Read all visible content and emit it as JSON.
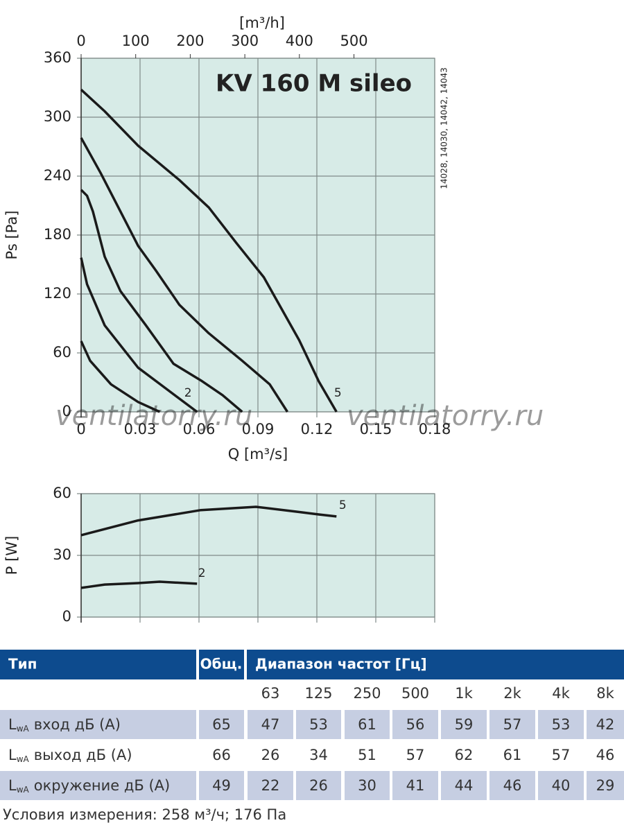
{
  "chart_data": [
    {
      "type": "line",
      "title": "KV 160 M sileo",
      "side_note": "14028, 14030, 14042, 14043",
      "xlabel": "Q [m³/s]",
      "ylabel": "Ps [Pa]",
      "x2label": "[m³/h]",
      "xlim": [
        0,
        0.18
      ],
      "xticks": [
        0,
        0.03,
        0.06,
        0.09,
        0.12,
        0.15,
        0.18
      ],
      "ylim": [
        0,
        360
      ],
      "yticks": [
        0,
        60,
        120,
        180,
        240,
        300,
        360
      ],
      "x2lim": [
        0,
        648
      ],
      "x2ticks": [
        0,
        100,
        200,
        300,
        400,
        500
      ],
      "grid": true,
      "background": "#d7ebe7",
      "grid_color": "#7f8a88",
      "watermark": [
        "ventilatorry.ru",
        "ventilatorry.ru"
      ],
      "series": [
        {
          "color": "#1a1a1a",
          "x": [
            0,
            0.0046,
            0.0152,
            0.029,
            0.04
          ],
          "values": [
            72,
            52,
            28,
            10,
            0
          ]
        },
        {
          "name": "2",
          "color": "#1a1a1a",
          "x": [
            0,
            0.003,
            0.012,
            0.029,
            0.043,
            0.059
          ],
          "values": [
            157,
            130,
            88,
            45,
            24,
            0
          ]
        },
        {
          "color": "#1a1a1a",
          "x": [
            0,
            0.003,
            0.006,
            0.012,
            0.02,
            0.033,
            0.047,
            0.061,
            0.072,
            0.082
          ],
          "values": [
            226,
            220,
            204,
            158,
            123,
            88,
            49,
            32,
            17,
            0
          ]
        },
        {
          "color": "#1a1a1a",
          "x": [
            0,
            0.01,
            0.019,
            0.029,
            0.038,
            0.05,
            0.065,
            0.082,
            0.096,
            0.105
          ],
          "values": [
            279,
            243,
            208,
            169,
            144,
            109,
            80,
            52,
            28,
            0
          ]
        },
        {
          "name": "5",
          "color": "#1a1a1a",
          "x": [
            0,
            0.012,
            0.029,
            0.05,
            0.065,
            0.079,
            0.093,
            0.111,
            0.121,
            0.13
          ],
          "values": [
            328,
            306,
            271,
            236,
            208,
            172,
            137,
            73,
            31,
            0
          ]
        }
      ]
    },
    {
      "type": "line",
      "ylabel": "P [W]",
      "xlim": [
        0,
        0.18
      ],
      "xticks": [
        0,
        0.03,
        0.06,
        0.09,
        0.12,
        0.15,
        0.18
      ],
      "ylim": [
        0,
        60
      ],
      "yticks": [
        0,
        30,
        60
      ],
      "grid": true,
      "background": "#d7ebe7",
      "grid_color": "#7f8a88",
      "series": [
        {
          "name": "5",
          "color": "#1a1a1a",
          "x": [
            0,
            0.029,
            0.061,
            0.089,
            0.11,
            0.121,
            0.13
          ],
          "values": [
            39.8,
            47,
            52,
            53.6,
            51.2,
            49.9,
            48.9
          ]
        },
        {
          "name": "2",
          "color": "#1a1a1a",
          "x": [
            0,
            0.012,
            0.029,
            0.04,
            0.059
          ],
          "values": [
            14.2,
            15.8,
            16.5,
            17.2,
            16.2
          ]
        }
      ]
    }
  ],
  "table": {
    "headers": [
      "Тип",
      "Общ.",
      "Диапазон частот [Гц]"
    ],
    "frequencies": [
      "63",
      "125",
      "250",
      "500",
      "1k",
      "2k",
      "4k",
      "8k"
    ],
    "rows": [
      {
        "label": {
          "symbol": "L",
          "subscript": "wA",
          "text": "вход дБ (А)"
        },
        "values": [
          65,
          47,
          53,
          61,
          56,
          59,
          57,
          53,
          42
        ]
      },
      {
        "label": {
          "symbol": "L",
          "subscript": "wA",
          "text": "выход дБ (А)"
        },
        "values": [
          66,
          26,
          34,
          51,
          57,
          62,
          61,
          57,
          46
        ]
      },
      {
        "label": {
          "symbol": "L",
          "subscript": "wA",
          "text": "окружение дБ (А)"
        },
        "values": [
          49,
          22,
          26,
          30,
          41,
          44,
          46,
          40,
          29
        ]
      }
    ],
    "footnote": "Условия измерения: 258 м³/ч; 176 Па"
  }
}
